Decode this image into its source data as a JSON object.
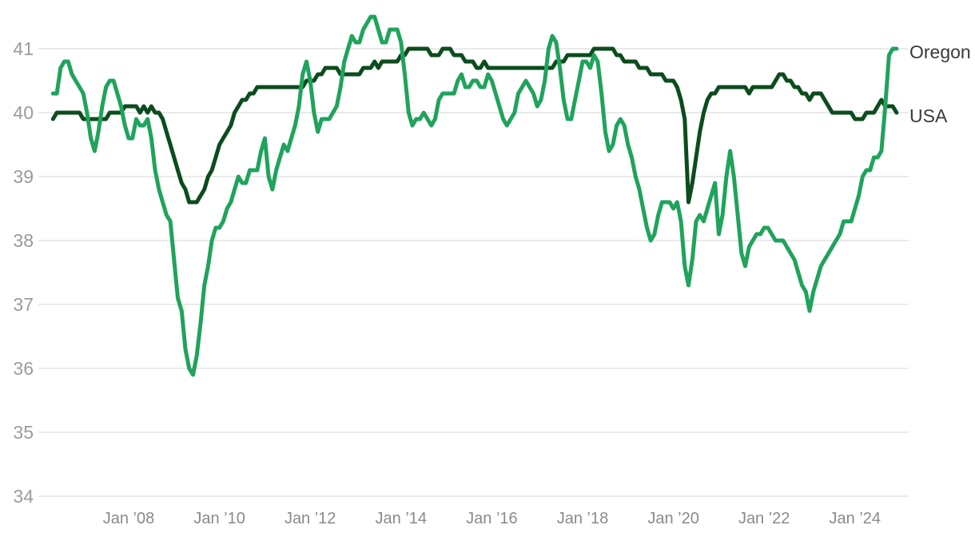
{
  "colors": {
    "oregon_line": "#20A35C",
    "usa_line": "#0C4C1E",
    "gridline": "#E3E3E3",
    "y_tick_text": "#9B9B9B",
    "x_tick_text": "#8A8A8A",
    "legend_text": "#3A3A3A",
    "background": "#FFFFFF"
  },
  "legend": {
    "oregon": "Oregon",
    "usa": "USA"
  },
  "chart_data": {
    "type": "line",
    "title": "",
    "xlabel": "",
    "ylabel": "",
    "grid": true,
    "legend_position": "right-of-line-ends",
    "frequency": "monthly",
    "start_month": "2006-05",
    "end_month": "2024-12",
    "x_axis": {
      "ticks": [
        {
          "date": "2008-01",
          "label": "Jan ’08"
        },
        {
          "date": "2010-01",
          "label": "Jan ’10"
        },
        {
          "date": "2012-01",
          "label": "Jan ’12"
        },
        {
          "date": "2014-01",
          "label": "Jan ’14"
        },
        {
          "date": "2016-01",
          "label": "Jan ’16"
        },
        {
          "date": "2018-01",
          "label": "Jan ’18"
        },
        {
          "date": "2020-01",
          "label": "Jan ’20"
        },
        {
          "date": "2022-01",
          "label": "Jan ’22"
        },
        {
          "date": "2024-01",
          "label": "Jan ’24"
        }
      ]
    },
    "y_axis": {
      "ticks": [
        34,
        35,
        36,
        37,
        38,
        39,
        40,
        41
      ],
      "min": 34,
      "max": 41.6
    },
    "series": [
      {
        "name": "USA",
        "color_key": "usa_line",
        "values": [
          39.9,
          40.0,
          40.0,
          40.0,
          40.0,
          40.0,
          40.0,
          40.0,
          39.9,
          39.9,
          39.9,
          39.9,
          39.9,
          39.9,
          39.9,
          40.0,
          40.0,
          40.0,
          40.0,
          40.1,
          40.1,
          40.1,
          40.1,
          40.0,
          40.1,
          40.0,
          40.1,
          40.0,
          40.0,
          39.9,
          39.7,
          39.5,
          39.3,
          39.1,
          38.9,
          38.8,
          38.6,
          38.6,
          38.6,
          38.7,
          38.8,
          39.0,
          39.1,
          39.3,
          39.5,
          39.6,
          39.7,
          39.8,
          40.0,
          40.1,
          40.2,
          40.2,
          40.3,
          40.3,
          40.4,
          40.4,
          40.4,
          40.4,
          40.4,
          40.4,
          40.4,
          40.4,
          40.4,
          40.4,
          40.4,
          40.4,
          40.4,
          40.5,
          40.5,
          40.5,
          40.6,
          40.6,
          40.7,
          40.7,
          40.7,
          40.7,
          40.6,
          40.6,
          40.6,
          40.6,
          40.6,
          40.6,
          40.7,
          40.7,
          40.7,
          40.8,
          40.7,
          40.8,
          40.8,
          40.8,
          40.8,
          40.8,
          40.9,
          40.9,
          41.0,
          41.0,
          41.0,
          41.0,
          41.0,
          41.0,
          40.9,
          40.9,
          40.9,
          41.0,
          41.0,
          41.0,
          40.9,
          40.9,
          40.9,
          40.8,
          40.8,
          40.8,
          40.7,
          40.7,
          40.8,
          40.7,
          40.7,
          40.7,
          40.7,
          40.7,
          40.7,
          40.7,
          40.7,
          40.7,
          40.7,
          40.7,
          40.7,
          40.7,
          40.7,
          40.7,
          40.7,
          40.7,
          40.7,
          40.8,
          40.8,
          40.8,
          40.9,
          40.9,
          40.9,
          40.9,
          40.9,
          40.9,
          40.9,
          41.0,
          41.0,
          41.0,
          41.0,
          41.0,
          41.0,
          40.9,
          40.9,
          40.8,
          40.8,
          40.8,
          40.8,
          40.7,
          40.7,
          40.7,
          40.6,
          40.6,
          40.6,
          40.6,
          40.5,
          40.5,
          40.5,
          40.4,
          40.2,
          39.9,
          38.6,
          38.9,
          39.3,
          39.7,
          40.0,
          40.2,
          40.3,
          40.3,
          40.4,
          40.4,
          40.4,
          40.4,
          40.4,
          40.4,
          40.4,
          40.4,
          40.3,
          40.4,
          40.4,
          40.4,
          40.4,
          40.4,
          40.4,
          40.5,
          40.6,
          40.6,
          40.5,
          40.5,
          40.4,
          40.4,
          40.3,
          40.3,
          40.2,
          40.3,
          40.3,
          40.3,
          40.2,
          40.1,
          40.0,
          40.0,
          40.0,
          40.0,
          40.0,
          40.0,
          39.9,
          39.9,
          39.9,
          40.0,
          40.0,
          40.0,
          40.1,
          40.2,
          40.1,
          40.1,
          40.1,
          40.0
        ]
      },
      {
        "name": "Oregon",
        "color_key": "oregon_line",
        "values": [
          40.3,
          40.3,
          40.7,
          40.8,
          40.8,
          40.6,
          40.5,
          40.4,
          40.3,
          40.0,
          39.6,
          39.4,
          39.7,
          40.1,
          40.4,
          40.5,
          40.5,
          40.3,
          40.1,
          39.8,
          39.6,
          39.6,
          39.9,
          39.8,
          39.8,
          39.9,
          39.6,
          39.1,
          38.8,
          38.6,
          38.4,
          38.3,
          37.7,
          37.1,
          36.9,
          36.3,
          36.0,
          35.9,
          36.2,
          36.7,
          37.3,
          37.6,
          38.0,
          38.2,
          38.2,
          38.3,
          38.5,
          38.6,
          38.8,
          39.0,
          38.9,
          38.9,
          39.1,
          39.1,
          39.1,
          39.4,
          39.6,
          39.0,
          38.8,
          39.1,
          39.3,
          39.5,
          39.4,
          39.6,
          39.8,
          40.1,
          40.6,
          40.8,
          40.5,
          40.0,
          39.7,
          39.9,
          39.9,
          39.9,
          40.0,
          40.1,
          40.4,
          40.8,
          41.0,
          41.2,
          41.1,
          41.1,
          41.3,
          41.4,
          41.5,
          41.5,
          41.3,
          41.1,
          41.1,
          41.3,
          41.3,
          41.3,
          41.1,
          40.6,
          40.0,
          39.8,
          39.9,
          39.9,
          40.0,
          39.9,
          39.8,
          39.9,
          40.2,
          40.3,
          40.3,
          40.3,
          40.3,
          40.5,
          40.6,
          40.4,
          40.4,
          40.5,
          40.5,
          40.4,
          40.4,
          40.6,
          40.5,
          40.3,
          40.1,
          39.9,
          39.8,
          39.9,
          40.0,
          40.3,
          40.4,
          40.5,
          40.4,
          40.3,
          40.1,
          40.2,
          40.5,
          41.0,
          41.2,
          41.1,
          40.7,
          40.2,
          39.9,
          39.9,
          40.2,
          40.5,
          40.8,
          40.8,
          40.7,
          40.9,
          40.8,
          40.3,
          39.7,
          39.4,
          39.5,
          39.8,
          39.9,
          39.8,
          39.5,
          39.3,
          39.0,
          38.8,
          38.5,
          38.2,
          38.0,
          38.1,
          38.4,
          38.6,
          38.6,
          38.6,
          38.5,
          38.6,
          38.3,
          37.6,
          37.3,
          37.7,
          38.3,
          38.4,
          38.3,
          38.5,
          38.7,
          38.9,
          38.1,
          38.4,
          39.0,
          39.4,
          39.0,
          38.4,
          37.8,
          37.6,
          37.9,
          38.0,
          38.1,
          38.1,
          38.2,
          38.2,
          38.1,
          38.0,
          38.0,
          38.0,
          37.9,
          37.8,
          37.7,
          37.5,
          37.3,
          37.2,
          36.9,
          37.2,
          37.4,
          37.6,
          37.7,
          37.8,
          37.9,
          38.0,
          38.1,
          38.3,
          38.3,
          38.3,
          38.5,
          38.7,
          39.0,
          39.1,
          39.1,
          39.3,
          39.3,
          39.4,
          40.1,
          40.9,
          41.0,
          41.0
        ]
      }
    ]
  }
}
